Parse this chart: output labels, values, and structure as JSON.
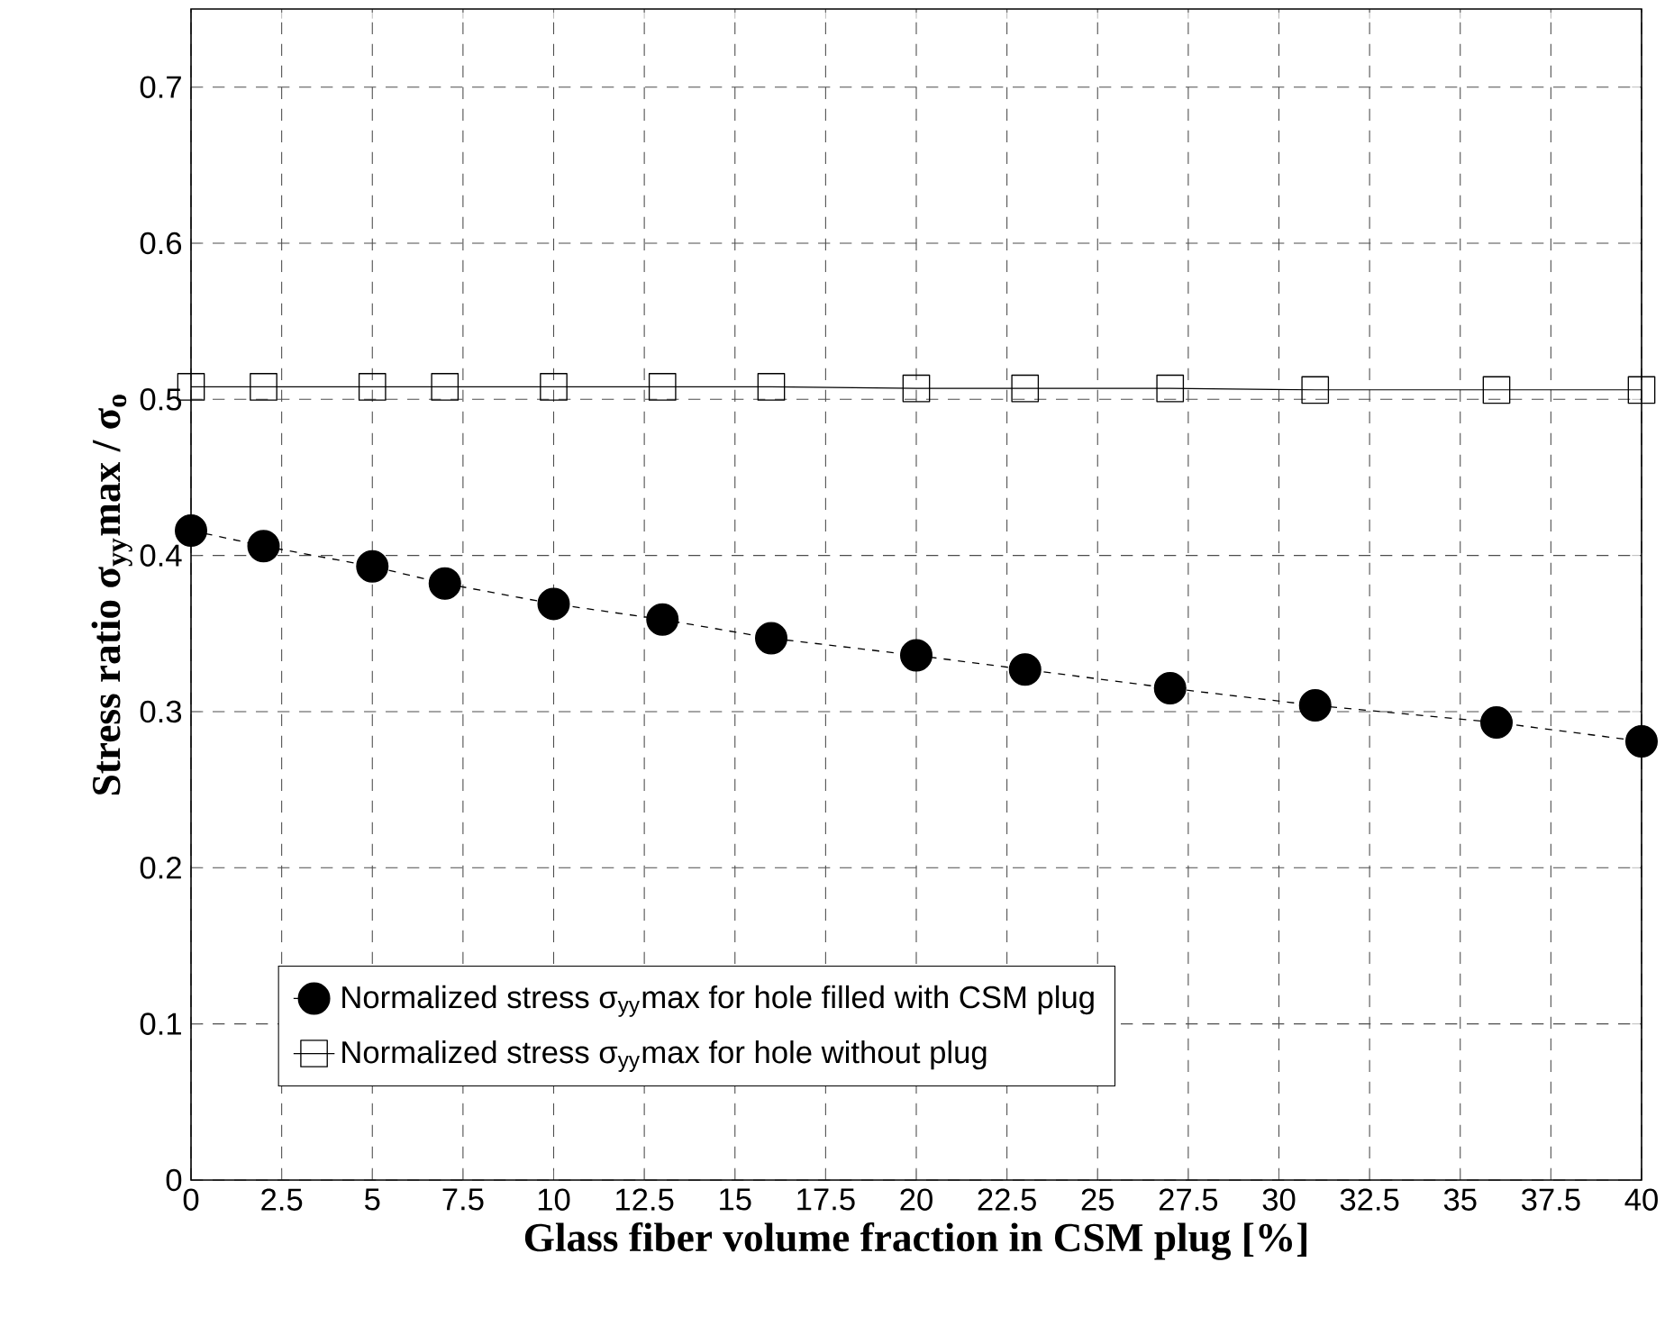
{
  "chart_data": {
    "type": "line",
    "xlabel": "Glass fiber volume fraction in CSM plug [%]",
    "ylabel": "Stress ratio σ$_{yy}$max / σ$_{o}$",
    "x": [
      0,
      2,
      5,
      7,
      10,
      13,
      16,
      20,
      23,
      27,
      31,
      36,
      40
    ],
    "series": [
      {
        "name": "Normalized stress σ$_{yy}$max for hole filled with CSM plug",
        "color": "#000000",
        "marker": "circle",
        "line_style": "dashed",
        "values": [
          0.416,
          0.406,
          0.393,
          0.382,
          0.369,
          0.359,
          0.347,
          0.336,
          0.327,
          0.315,
          0.304,
          0.293,
          0.281
        ]
      },
      {
        "name": "Normalized stress σ$_{yy}$max for hole without plug",
        "color": "#000000",
        "marker": "square",
        "line_style": "solid",
        "values": [
          0.508,
          0.508,
          0.508,
          0.508,
          0.508,
          0.508,
          0.508,
          0.507,
          0.507,
          0.507,
          0.506,
          0.506,
          0.506
        ]
      }
    ],
    "xlim": [
      0,
      40
    ],
    "ylim": [
      0,
      0.75
    ],
    "xticks": [
      0,
      2.5,
      5,
      7.5,
      10,
      12.5,
      15,
      17.5,
      20,
      22.5,
      25,
      27.5,
      30,
      32.5,
      35,
      37.5,
      40
    ],
    "yticks": [
      0,
      0.1,
      0.2,
      0.3,
      0.4,
      0.5,
      0.6,
      0.7
    ],
    "grid": true,
    "legend": "bottom"
  }
}
